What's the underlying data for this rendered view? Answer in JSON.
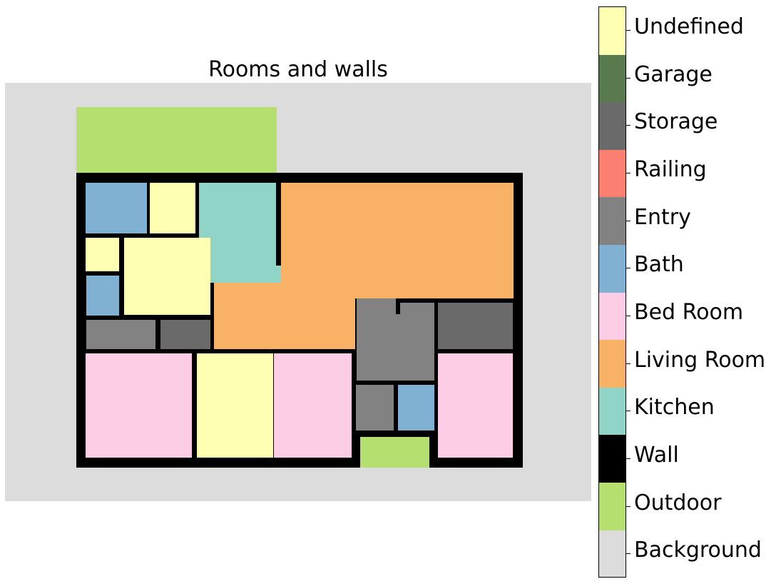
{
  "title": "Rooms and walls",
  "colors": {
    "background": "#dcdcdc",
    "outdoor": "#b5df6e",
    "wall": "#000000",
    "kitchen": "#8fd4c6",
    "living_room": "#f9b265",
    "bed_room": "#fccde5",
    "bath": "#80b0d2",
    "entry": "#828282",
    "railing": "#fb8072",
    "storage": "#6a6a6a",
    "garage": "#587a4c",
    "undefined": "#feffb3"
  },
  "legend": [
    {
      "label": "Undefined",
      "color": "#feffb3"
    },
    {
      "label": "Garage",
      "color": "#587a4c"
    },
    {
      "label": "Storage",
      "color": "#6a6a6a"
    },
    {
      "label": "Railing",
      "color": "#fb8072"
    },
    {
      "label": "Entry",
      "color": "#828282"
    },
    {
      "label": "Bath",
      "color": "#80b0d2"
    },
    {
      "label": "Bed Room",
      "color": "#fccde5"
    },
    {
      "label": "Living Room",
      "color": "#f9b265"
    },
    {
      "label": "Kitchen",
      "color": "#8fd4c6"
    },
    {
      "label": "Wall",
      "color": "#000000"
    },
    {
      "label": "Outdoor",
      "color": "#b5df6e"
    },
    {
      "label": "Background",
      "color": "#dcdcdc"
    }
  ]
}
